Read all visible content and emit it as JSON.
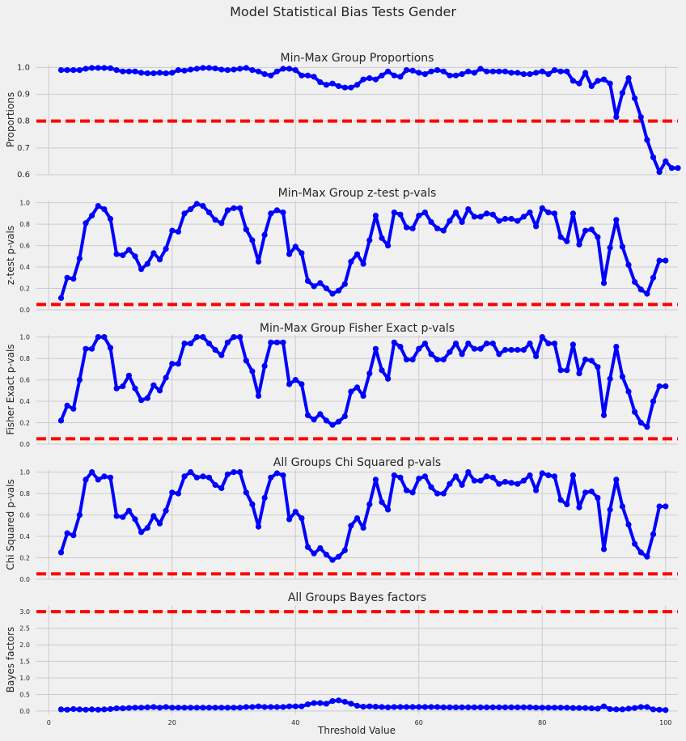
{
  "figure": {
    "suptitle": "Model Statistical Bias Tests Gender",
    "xlabel": "Threshold Value"
  },
  "colors": {
    "background": "#f0f0f0",
    "series": "#0000ff",
    "threshold": "#ff0000",
    "grid": "#cbcbcb"
  },
  "chart_data": [
    {
      "type": "line",
      "title": "Min-Max Group Proportions",
      "ylabel": "Proportions",
      "xlim": [
        -2,
        102
      ],
      "ylim": [
        0.6,
        1.01
      ],
      "xticks": [
        0,
        20,
        40,
        60,
        80,
        100
      ],
      "yticks": [
        0.6,
        0.7,
        0.8,
        0.9,
        1.0
      ],
      "ytick_labels": [
        "0.6",
        "0.7",
        "0.8",
        "0.9",
        "1.0"
      ],
      "threshold": 0.8,
      "x_start": 2,
      "x_step": 1,
      "values": [
        0.99,
        0.99,
        0.99,
        0.99,
        0.995,
        0.998,
        0.998,
        0.998,
        0.997,
        0.99,
        0.985,
        0.985,
        0.985,
        0.98,
        0.978,
        0.978,
        0.98,
        0.978,
        0.98,
        0.99,
        0.988,
        0.992,
        0.995,
        0.998,
        0.998,
        0.996,
        0.992,
        0.99,
        0.992,
        0.995,
        0.998,
        0.99,
        0.985,
        0.975,
        0.97,
        0.985,
        0.995,
        0.995,
        0.99,
        0.97,
        0.97,
        0.965,
        0.945,
        0.935,
        0.94,
        0.93,
        0.925,
        0.925,
        0.935,
        0.955,
        0.96,
        0.955,
        0.97,
        0.985,
        0.97,
        0.965,
        0.99,
        0.988,
        0.98,
        0.975,
        0.985,
        0.99,
        0.985,
        0.97,
        0.97,
        0.975,
        0.985,
        0.98,
        0.995,
        0.985,
        0.985,
        0.985,
        0.985,
        0.98,
        0.98,
        0.975,
        0.975,
        0.98,
        0.985,
        0.975,
        0.99,
        0.985,
        0.985,
        0.95,
        0.94,
        0.98,
        0.93,
        0.95,
        0.955,
        0.94,
        0.815,
        0.905,
        0.96,
        0.885,
        0.815,
        0.73,
        0.665,
        0.61,
        0.65,
        0.625,
        0.625
      ]
    },
    {
      "type": "line",
      "title": "Min-Max Group z-test p-vals",
      "ylabel": "z-test p-vals",
      "xlim": [
        -2,
        102
      ],
      "ylim": [
        0,
        1.02
      ],
      "xticks": [
        0,
        20,
        40,
        60,
        80,
        100
      ],
      "yticks": [
        0,
        0.2,
        0.4,
        0.6,
        0.8,
        1.0
      ],
      "ytick_labels": [
        "0.0",
        "0.2",
        "0.4",
        "0.6",
        "0.8",
        "1.0"
      ],
      "threshold": 0.05,
      "x_start": 2,
      "x_step": 1,
      "values": [
        0.11,
        0.3,
        0.29,
        0.48,
        0.81,
        0.88,
        0.97,
        0.94,
        0.85,
        0.52,
        0.51,
        0.56,
        0.5,
        0.38,
        0.43,
        0.53,
        0.47,
        0.57,
        0.74,
        0.73,
        0.9,
        0.94,
        0.99,
        0.97,
        0.91,
        0.84,
        0.81,
        0.93,
        0.95,
        0.95,
        0.75,
        0.65,
        0.45,
        0.7,
        0.9,
        0.93,
        0.91,
        0.52,
        0.59,
        0.53,
        0.27,
        0.22,
        0.25,
        0.2,
        0.15,
        0.18,
        0.24,
        0.45,
        0.52,
        0.43,
        0.65,
        0.88,
        0.67,
        0.6,
        0.91,
        0.89,
        0.77,
        0.76,
        0.88,
        0.91,
        0.82,
        0.76,
        0.74,
        0.83,
        0.91,
        0.82,
        0.94,
        0.87,
        0.87,
        0.9,
        0.89,
        0.83,
        0.85,
        0.85,
        0.83,
        0.87,
        0.91,
        0.78,
        0.95,
        0.91,
        0.9,
        0.68,
        0.64,
        0.9,
        0.61,
        0.74,
        0.75,
        0.68,
        0.25,
        0.58,
        0.84,
        0.59,
        0.42,
        0.26,
        0.19,
        0.15,
        0.3,
        0.46,
        0.46
      ]
    },
    {
      "type": "line",
      "title": "Min-Max Group Fisher Exact p-vals",
      "ylabel": "Fisher Exact p-vals",
      "xlim": [
        -2,
        102
      ],
      "ylim": [
        0,
        1.02
      ],
      "xticks": [
        0,
        20,
        40,
        60,
        80,
        100
      ],
      "yticks": [
        0,
        0.2,
        0.4,
        0.6,
        0.8,
        1.0
      ],
      "ytick_labels": [
        "0.0",
        "0.2",
        "0.4",
        "0.6",
        "0.8",
        "1.0"
      ],
      "threshold": 0.05,
      "x_start": 2,
      "x_step": 1,
      "values": [
        0.22,
        0.36,
        0.33,
        0.6,
        0.89,
        0.89,
        1.0,
        1.0,
        0.9,
        0.52,
        0.54,
        0.64,
        0.52,
        0.41,
        0.43,
        0.55,
        0.5,
        0.62,
        0.75,
        0.75,
        0.94,
        0.94,
        1.0,
        1.0,
        0.94,
        0.88,
        0.83,
        0.95,
        1.0,
        1.0,
        0.78,
        0.68,
        0.45,
        0.73,
        0.95,
        0.95,
        0.95,
        0.56,
        0.6,
        0.56,
        0.27,
        0.23,
        0.28,
        0.22,
        0.18,
        0.21,
        0.26,
        0.49,
        0.53,
        0.45,
        0.66,
        0.89,
        0.69,
        0.61,
        0.95,
        0.91,
        0.79,
        0.79,
        0.89,
        0.94,
        0.84,
        0.79,
        0.79,
        0.86,
        0.94,
        0.84,
        0.94,
        0.89,
        0.89,
        0.94,
        0.94,
        0.84,
        0.88,
        0.88,
        0.88,
        0.88,
        0.94,
        0.82,
        1.0,
        0.94,
        0.94,
        0.69,
        0.69,
        0.93,
        0.66,
        0.79,
        0.78,
        0.72,
        0.27,
        0.61,
        0.91,
        0.63,
        0.49,
        0.3,
        0.2,
        0.16,
        0.4,
        0.54,
        0.54
      ]
    },
    {
      "type": "line",
      "title": "All Groups Chi Squared p-vals",
      "ylabel": "Chi Squared p-vals",
      "xlim": [
        -2,
        102
      ],
      "ylim": [
        0,
        1.02
      ],
      "xticks": [
        0,
        20,
        40,
        60,
        80,
        100
      ],
      "yticks": [
        0,
        0.2,
        0.4,
        0.6,
        0.8,
        1.0
      ],
      "ytick_labels": [
        "0.0",
        "0.2",
        "0.4",
        "0.6",
        "0.8",
        "1.0"
      ],
      "threshold": 0.05,
      "x_start": 2,
      "x_step": 1,
      "values": [
        0.25,
        0.43,
        0.41,
        0.6,
        0.93,
        1.0,
        0.93,
        0.96,
        0.95,
        0.59,
        0.58,
        0.64,
        0.56,
        0.44,
        0.48,
        0.59,
        0.52,
        0.64,
        0.81,
        0.8,
        0.96,
        1.0,
        0.95,
        0.96,
        0.95,
        0.88,
        0.85,
        0.98,
        1.0,
        1.0,
        0.81,
        0.7,
        0.49,
        0.76,
        0.95,
        0.99,
        0.97,
        0.56,
        0.63,
        0.57,
        0.3,
        0.24,
        0.29,
        0.23,
        0.18,
        0.21,
        0.27,
        0.5,
        0.57,
        0.48,
        0.7,
        0.93,
        0.72,
        0.65,
        0.97,
        0.95,
        0.83,
        0.81,
        0.94,
        0.96,
        0.86,
        0.8,
        0.8,
        0.89,
        0.96,
        0.88,
        1.0,
        0.92,
        0.92,
        0.96,
        0.95,
        0.89,
        0.91,
        0.9,
        0.89,
        0.92,
        0.97,
        0.83,
        0.99,
        0.97,
        0.96,
        0.74,
        0.7,
        0.97,
        0.67,
        0.81,
        0.82,
        0.76,
        0.28,
        0.65,
        0.93,
        0.68,
        0.51,
        0.33,
        0.25,
        0.21,
        0.42,
        0.68,
        0.68
      ]
    },
    {
      "type": "line",
      "title": "All Groups Bayes factors",
      "ylabel": "Bayes factors",
      "xlim": [
        -2,
        102
      ],
      "ylim": [
        -0.1,
        3.2
      ],
      "xticks": [
        0,
        20,
        40,
        60,
        80,
        100
      ],
      "xtick_labels": [
        "0",
        "20",
        "40",
        "60",
        "80",
        "100"
      ],
      "yticks": [
        0,
        0.5,
        1.0,
        1.5,
        2.0,
        2.5,
        3.0
      ],
      "ytick_labels": [
        "0.0",
        "0.5",
        "1.0",
        "1.5",
        "2.0",
        "2.5",
        "3.0"
      ],
      "threshold": 3.0,
      "x_start": 2,
      "x_step": 1,
      "values": [
        0.05,
        0.04,
        0.06,
        0.05,
        0.04,
        0.05,
        0.04,
        0.05,
        0.06,
        0.08,
        0.08,
        0.09,
        0.1,
        0.1,
        0.11,
        0.12,
        0.1,
        0.12,
        0.1,
        0.1,
        0.1,
        0.1,
        0.1,
        0.1,
        0.1,
        0.1,
        0.1,
        0.1,
        0.1,
        0.1,
        0.12,
        0.12,
        0.14,
        0.12,
        0.12,
        0.12,
        0.12,
        0.14,
        0.14,
        0.14,
        0.2,
        0.24,
        0.24,
        0.22,
        0.3,
        0.32,
        0.28,
        0.22,
        0.16,
        0.13,
        0.14,
        0.13,
        0.12,
        0.11,
        0.12,
        0.12,
        0.12,
        0.12,
        0.12,
        0.12,
        0.12,
        0.12,
        0.11,
        0.11,
        0.11,
        0.11,
        0.11,
        0.11,
        0.11,
        0.11,
        0.11,
        0.11,
        0.11,
        0.11,
        0.11,
        0.11,
        0.11,
        0.1,
        0.1,
        0.1,
        0.1,
        0.1,
        0.1,
        0.09,
        0.09,
        0.09,
        0.08,
        0.07,
        0.14,
        0.06,
        0.05,
        0.05,
        0.07,
        0.09,
        0.12,
        0.12,
        0.05,
        0.04,
        0.03
      ]
    }
  ]
}
